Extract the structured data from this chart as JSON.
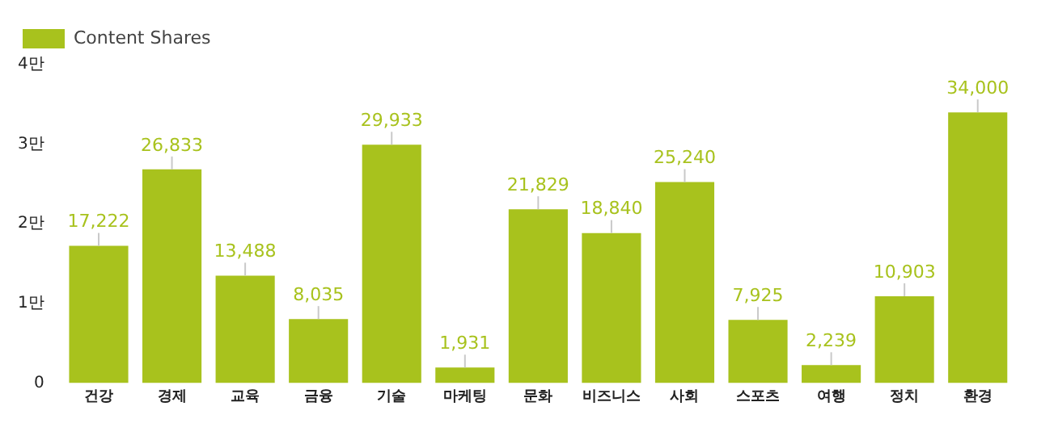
{
  "chart_data": {
    "type": "bar",
    "categories": [
      "건강",
      "경제",
      "교육",
      "금융",
      "기술",
      "마케팅",
      "문화",
      "비즈니스",
      "사회",
      "스포츠",
      "여행",
      "정치",
      "환경"
    ],
    "series": [
      {
        "name": "Content Shares",
        "color": "#a8c21d",
        "values": [
          1.7222,
          2.6833,
          1.3488,
          0.8035,
          2.9933,
          0.1931,
          2.1829,
          1.884,
          2.524,
          0.7925,
          0.2239,
          1.0903,
          3.4
        ]
      }
    ],
    "value_labels": [
      "17,222",
      "26,833",
      "13,488",
      "8,035",
      "29,933",
      "1,931",
      "21,829",
      "18,840",
      "25,240",
      "7,925",
      "2,239",
      "10,903",
      "34,000"
    ],
    "ylim": [
      0,
      4
    ],
    "yticks": [
      0,
      {
        "value": 1,
        "label": "1만"
      },
      {
        "value": 2,
        "label": "2만"
      },
      {
        "value": 3,
        "label": "3만"
      },
      {
        "value": 4,
        "label": "4만"
      }
    ],
    "grid": false,
    "legend": "top left"
  }
}
